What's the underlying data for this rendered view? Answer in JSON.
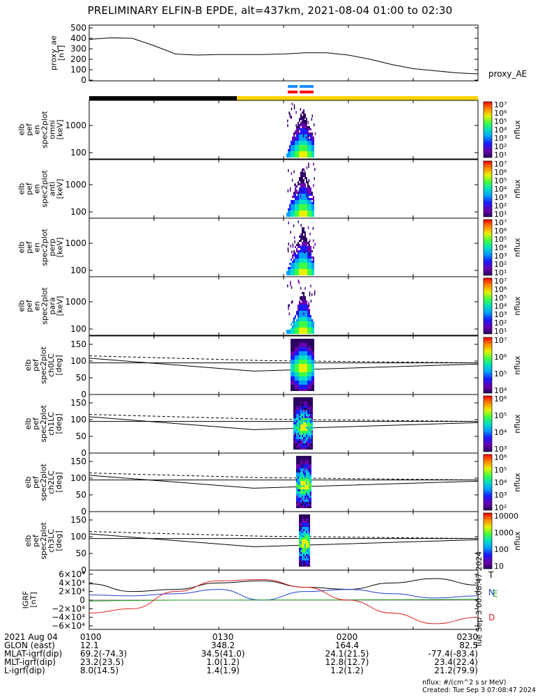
{
  "title": "PRELIMINARY ELFIN-B EPDE, alt=437km, 2021-08-04 01:00 to 02:30",
  "stamp": "Tue Sep 3 00:08:47 2024",
  "proxy_ae": {
    "ylabel": [
      "proxy_ae",
      "[nT]"
    ],
    "yticks": [
      "500",
      "400",
      "300",
      "200",
      "100",
      "0"
    ],
    "side_label": "proxy_AE"
  },
  "spec_panels": [
    {
      "ylabel": [
        "elb",
        "pef",
        "en",
        "spec2plot",
        "omni",
        "[keV]"
      ],
      "yticks": [
        "1000",
        "100"
      ],
      "cbar_ticks": [
        "10⁷",
        "10⁶",
        "10⁵",
        "10⁴",
        "10³",
        "10²",
        "10¹"
      ],
      "cbar_label": "nflux"
    },
    {
      "ylabel": [
        "elb",
        "pef",
        "en",
        "spec2plot",
        "anti",
        "[keV]"
      ],
      "yticks": [
        "1000",
        "100"
      ],
      "cbar_ticks": [
        "10⁷",
        "10⁶",
        "10⁵",
        "10⁴",
        "10³",
        "10²",
        "10¹"
      ],
      "cbar_label": "nflux"
    },
    {
      "ylabel": [
        "elb",
        "pef",
        "en",
        "spec2plot",
        "perp",
        "[keV]"
      ],
      "yticks": [
        "1000",
        "100"
      ],
      "cbar_ticks": [
        "10⁷",
        "10⁶",
        "10⁵",
        "10⁴",
        "10³",
        "10²",
        "10¹"
      ],
      "cbar_label": "nflux"
    },
    {
      "ylabel": [
        "elb",
        "pef",
        "en",
        "spec2plot",
        "para",
        "[keV]"
      ],
      "yticks": [
        "1000",
        "100"
      ],
      "cbar_ticks": [
        "10⁷",
        "10⁶",
        "10⁵",
        "10⁴",
        "10³",
        "10²",
        "10¹"
      ],
      "cbar_label": "nflux"
    }
  ],
  "pa_panels": [
    {
      "ylabel": [
        "elb",
        "pef",
        "spec2plot",
        "ch0LC",
        "[deg]"
      ],
      "yticks": [
        "150",
        "100",
        "50",
        "0"
      ],
      "cbar_ticks": [
        "10⁷",
        "10⁶",
        "10⁵",
        "10⁴"
      ],
      "cbar_label": "nflux"
    },
    {
      "ylabel": [
        "elb",
        "pef",
        "spec2plot",
        "ch1LC",
        "[deg]"
      ],
      "yticks": [
        "150",
        "100",
        "50",
        "0"
      ],
      "cbar_ticks": [
        "10⁶",
        "10⁵",
        "10⁴",
        "10³"
      ],
      "cbar_label": "nflux"
    },
    {
      "ylabel": [
        "elb",
        "pef",
        "spec2plot",
        "ch2LC",
        "[deg]"
      ],
      "yticks": [
        "150",
        "100",
        "50",
        "0"
      ],
      "cbar_ticks": [
        "10⁶",
        "10⁵",
        "10⁴",
        "10³",
        "10²"
      ],
      "cbar_label": "nflux"
    },
    {
      "ylabel": [
        "elb",
        "pef",
        "spec2plot",
        "ch3LC",
        "[deg]"
      ],
      "yticks": [
        "150",
        "100",
        "50",
        "0"
      ],
      "cbar_ticks": [
        "10000",
        "1000",
        "100",
        "10"
      ],
      "cbar_label": "nflux"
    }
  ],
  "igrf": {
    "ylabel": [
      "IGRF",
      "[nT]"
    ],
    "yticks": [
      "6×10⁴",
      "4×10⁴",
      "2×10⁴",
      "0",
      "−2×10⁴",
      "−4×10⁴",
      "−6×10⁴"
    ],
    "legend": [
      {
        "label": "T",
        "color": "#000000"
      },
      {
        "label": "N",
        "color": "#1f3fd0"
      },
      {
        "label": "E",
        "color": "#22a022"
      },
      {
        "label": "D",
        "color": "#e02020"
      }
    ]
  },
  "footer": {
    "rows": [
      {
        "label": "2021 Aug 04",
        "values": [
          "0100",
          "0130",
          "0200",
          "0230"
        ]
      },
      {
        "label": "GLON (east)",
        "values": [
          "12.1",
          "348.2",
          "164.4",
          "82.5"
        ]
      },
      {
        "label": "MLAT-igrf(dip)",
        "values": [
          "69.2(-74.3)",
          "34.5(41.0)",
          "24.1(21.5)",
          "-77.4(-83.4)"
        ]
      },
      {
        "label": "MLT-igrf(dip)",
        "values": [
          "23.2(23.5)",
          "1.0(1.2)",
          "12.8(12.7)",
          "23.4(22.4)"
        ]
      },
      {
        "label": "L-igrf(dip)",
        "values": [
          "8.0(14.5)",
          "1.4(1.9)",
          "1.2(1.2)",
          "21.2(79.9)"
        ]
      }
    ],
    "units_note": "nflux: #/(cm^2 s sr MeV)",
    "created": "Created: Tue Sep  3 07:08:47 2024"
  },
  "chart_data": {
    "type": "line",
    "title": "PRELIMINARY ELFIN-B EPDE, alt=437km, 2021-08-04 01:00 to 02:30",
    "x_range": [
      "01:00",
      "02:30"
    ],
    "series": [
      {
        "name": "proxy_AE",
        "x": [
          "01:00",
          "01:05",
          "01:10",
          "01:15",
          "01:20",
          "01:25",
          "01:30",
          "01:35",
          "01:40",
          "01:45",
          "01:50",
          "01:55",
          "02:00",
          "02:05",
          "02:10",
          "02:15",
          "02:20",
          "02:25",
          "02:30"
        ],
        "values": [
          390,
          405,
          400,
          330,
          250,
          240,
          245,
          245,
          245,
          250,
          262,
          262,
          240,
          200,
          150,
          110,
          90,
          70,
          60
        ]
      }
    ],
    "proxy_ae_ylim": [
      0,
      500
    ],
    "energy_ylim_keV": [
      60,
      3000
    ],
    "pitch_ylim_deg": [
      0,
      180
    ],
    "igrf_ylim": [
      -60000,
      60000
    ],
    "igrf_series": [
      {
        "name": "T",
        "x": [
          0,
          10,
          20,
          30,
          40,
          50,
          60,
          70,
          80,
          90
        ],
        "values": [
          38000,
          20000,
          25000,
          40000,
          45000,
          30000,
          25000,
          40000,
          50000,
          35000
        ]
      },
      {
        "name": "N",
        "x": [
          0,
          10,
          20,
          30,
          40,
          50,
          60,
          70,
          80,
          90
        ],
        "values": [
          12000,
          10000,
          15000,
          25000,
          0,
          20000,
          25000,
          15000,
          5000,
          10000
        ]
      },
      {
        "name": "E",
        "x": [
          0,
          10,
          20,
          30,
          40,
          50,
          60,
          70,
          80,
          90
        ],
        "values": [
          -2000,
          -1000,
          0,
          0,
          500,
          500,
          500,
          1000,
          1500,
          2000
        ]
      },
      {
        "name": "D",
        "x": [
          0,
          10,
          20,
          30,
          40,
          50,
          60,
          70,
          80,
          90
        ],
        "values": [
          -30000,
          -20000,
          20000,
          45000,
          48000,
          30000,
          0,
          -30000,
          -55000,
          -40000
        ]
      }
    ]
  }
}
